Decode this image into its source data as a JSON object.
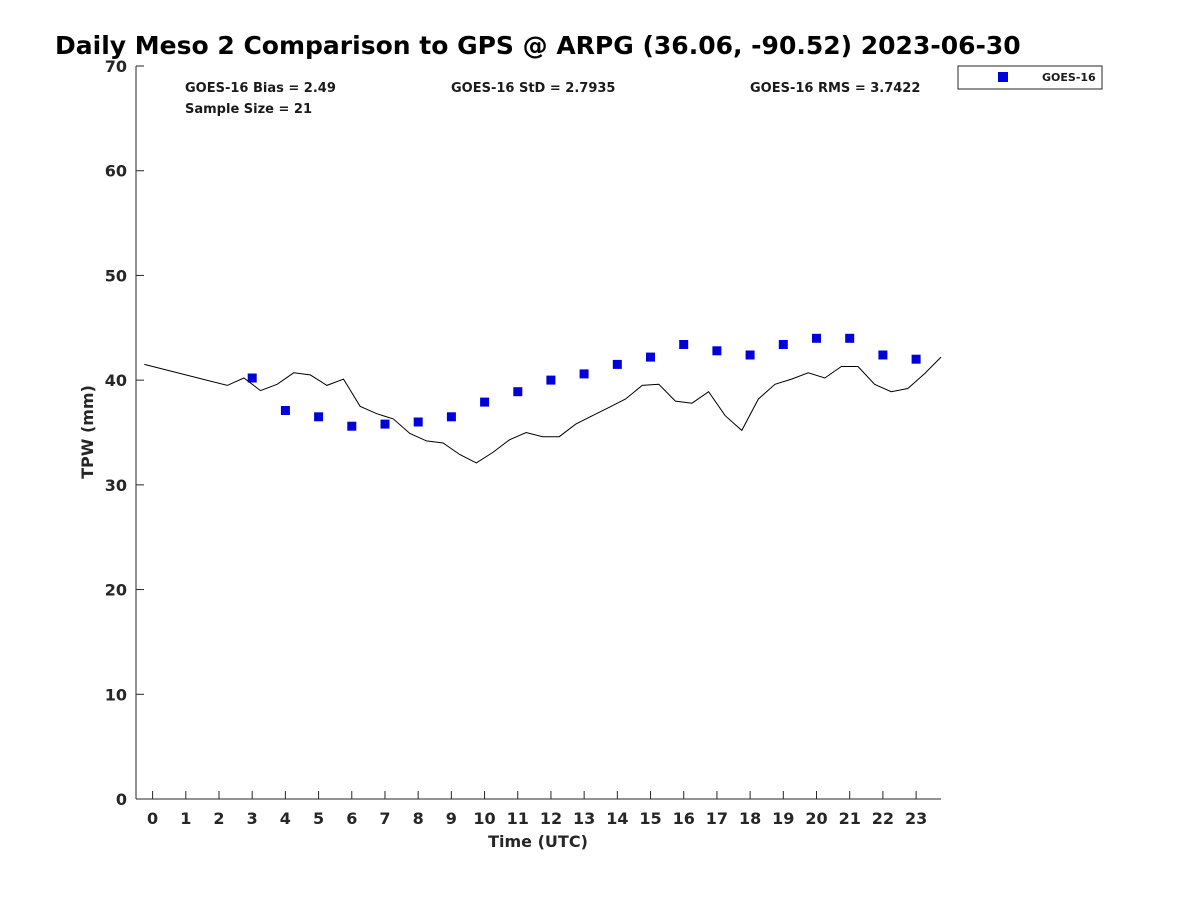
{
  "chart_data": {
    "type": "scatter",
    "title": "Daily Meso 2 Comparison to GPS @ ARPG (36.06, -90.52) 2023-06-30",
    "xlabel": "Time (UTC)",
    "ylabel": "TPW (mm)",
    "xlim": [
      -0.5,
      23.75
    ],
    "ylim": [
      0,
      70
    ],
    "x_ticks": [
      "0",
      "1",
      "2",
      "3",
      "4",
      "5",
      "6",
      "7",
      "8",
      "9",
      "10",
      "11",
      "12",
      "13",
      "14",
      "15",
      "16",
      "17",
      "18",
      "19",
      "20",
      "21",
      "22",
      "23"
    ],
    "y_ticks": [
      "0",
      "10",
      "20",
      "30",
      "40",
      "50",
      "60",
      "70"
    ],
    "grid": false,
    "legend_position": "outside-top-right",
    "stats": {
      "bias": "GOES-16 Bias = 2.49",
      "std": "GOES-16 StD = 2.7935",
      "rms": "GOES-16 RMS = 3.7422",
      "sample": "Sample Size = 21"
    },
    "series": [
      {
        "name": "GOES-16",
        "kind": "markers",
        "color": "#0000dd",
        "x": [
          3,
          4,
          5,
          6,
          7,
          8,
          9,
          10,
          11,
          12,
          13,
          14,
          15,
          16,
          17,
          18,
          19,
          20,
          21,
          22,
          23
        ],
        "y": [
          40.2,
          37.1,
          36.5,
          35.6,
          35.8,
          36.0,
          36.5,
          37.9,
          38.9,
          40.0,
          40.6,
          41.5,
          42.2,
          43.4,
          42.8,
          42.4,
          43.4,
          44.0,
          44.0,
          42.4,
          42.0
        ]
      },
      {
        "kind": "line",
        "color": "#000000",
        "x": [
          -0.25,
          2.25,
          2.75,
          3.25,
          3.75,
          4.25,
          4.75,
          5.25,
          5.75,
          6.25,
          6.75,
          7.25,
          7.75,
          8.25,
          8.75,
          9.25,
          9.75,
          10.25,
          10.75,
          11.25,
          11.75,
          12.25,
          12.75,
          13.25,
          13.75,
          14.25,
          14.75,
          15.25,
          15.75,
          16.25,
          16.75,
          17.25,
          17.75,
          18.25,
          18.75,
          19.25,
          19.75,
          20.25,
          20.75,
          21.25,
          21.75,
          22.25,
          22.75,
          23.25,
          23.75
        ],
        "y": [
          41.5,
          39.5,
          40.2,
          39.0,
          39.6,
          40.7,
          40.5,
          39.5,
          40.1,
          37.5,
          36.8,
          36.3,
          34.9,
          34.2,
          34.0,
          32.9,
          32.1,
          33.1,
          34.3,
          35.0,
          34.6,
          34.6,
          35.8,
          36.6,
          37.4,
          38.2,
          39.5,
          39.6,
          38.0,
          37.8,
          38.9,
          36.6,
          35.2,
          38.2,
          39.6,
          40.1,
          40.7,
          40.2,
          41.3,
          41.3,
          39.6,
          38.9,
          39.2,
          40.6,
          42.2
        ]
      }
    ]
  }
}
